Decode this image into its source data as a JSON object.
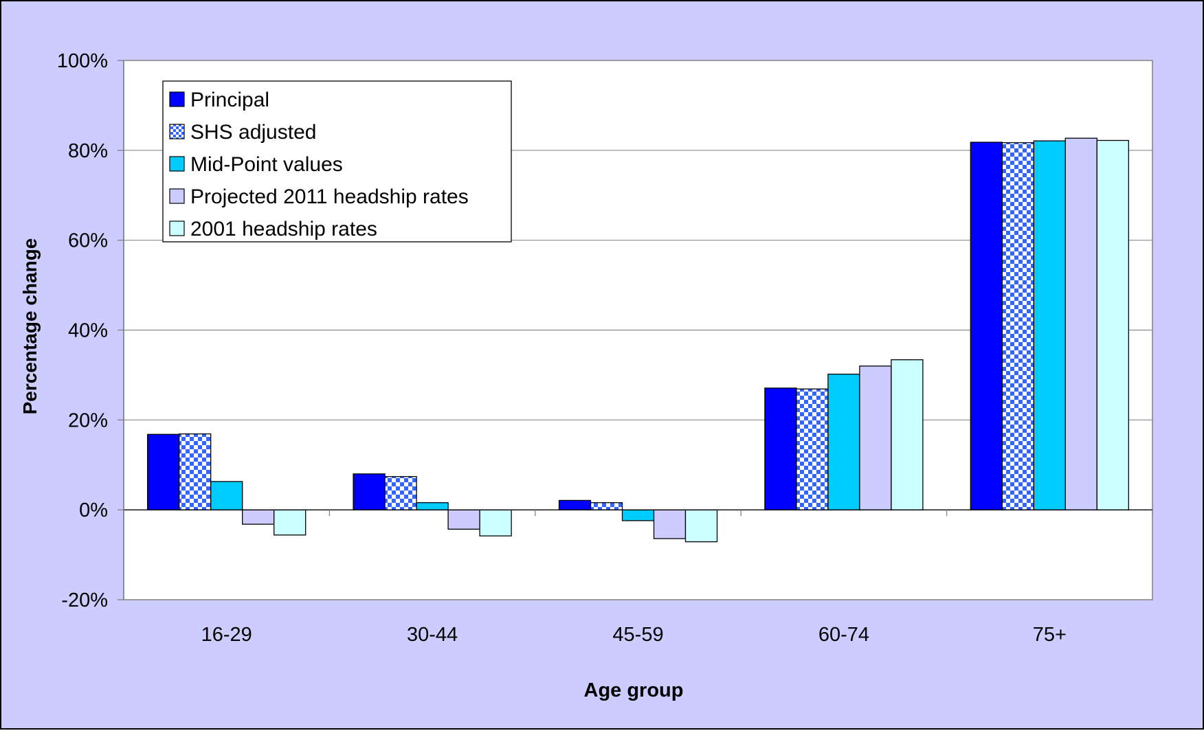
{
  "chart_data": {
    "type": "bar",
    "title": "",
    "xlabel": "Age group",
    "ylabel": "Percentage change",
    "ylim": [
      -20,
      100
    ],
    "yticks": [
      -20,
      0,
      20,
      40,
      60,
      80,
      100
    ],
    "tick_suffix": "%",
    "grid": true,
    "legend_position": "top-left",
    "categories": [
      "16-29",
      "30-44",
      "45-59",
      "60-74",
      "75+"
    ],
    "series": [
      {
        "name": "Principal",
        "values": [
          16.8,
          8.0,
          2.1,
          27.1,
          81.8
        ],
        "color": "#0000FF",
        "pattern": "solid"
      },
      {
        "name": "SHS adjusted",
        "values": [
          16.9,
          7.4,
          1.6,
          26.9,
          81.7
        ],
        "color": "#3366FF",
        "pattern": "checker"
      },
      {
        "name": "Mid-Point values",
        "values": [
          6.3,
          1.6,
          -2.4,
          30.2,
          82.1
        ],
        "color": "#00CCFF",
        "pattern": "solid"
      },
      {
        "name": "Projected 2011 headship rates",
        "values": [
          -3.2,
          -4.3,
          -6.4,
          32.0,
          82.7
        ],
        "color": "#CCCCFF",
        "pattern": "solid"
      },
      {
        "name": "2001 headship rates",
        "values": [
          -5.6,
          -5.8,
          -7.1,
          33.4,
          82.2
        ],
        "color": "#CCFFFF",
        "pattern": "solid"
      }
    ],
    "colors": {
      "chart_area": "#CCCCFF",
      "plot_area": "#FFFFFF",
      "gridline": "#8C8C8C",
      "axis": "#808080",
      "bar_outline": "#000000"
    }
  }
}
